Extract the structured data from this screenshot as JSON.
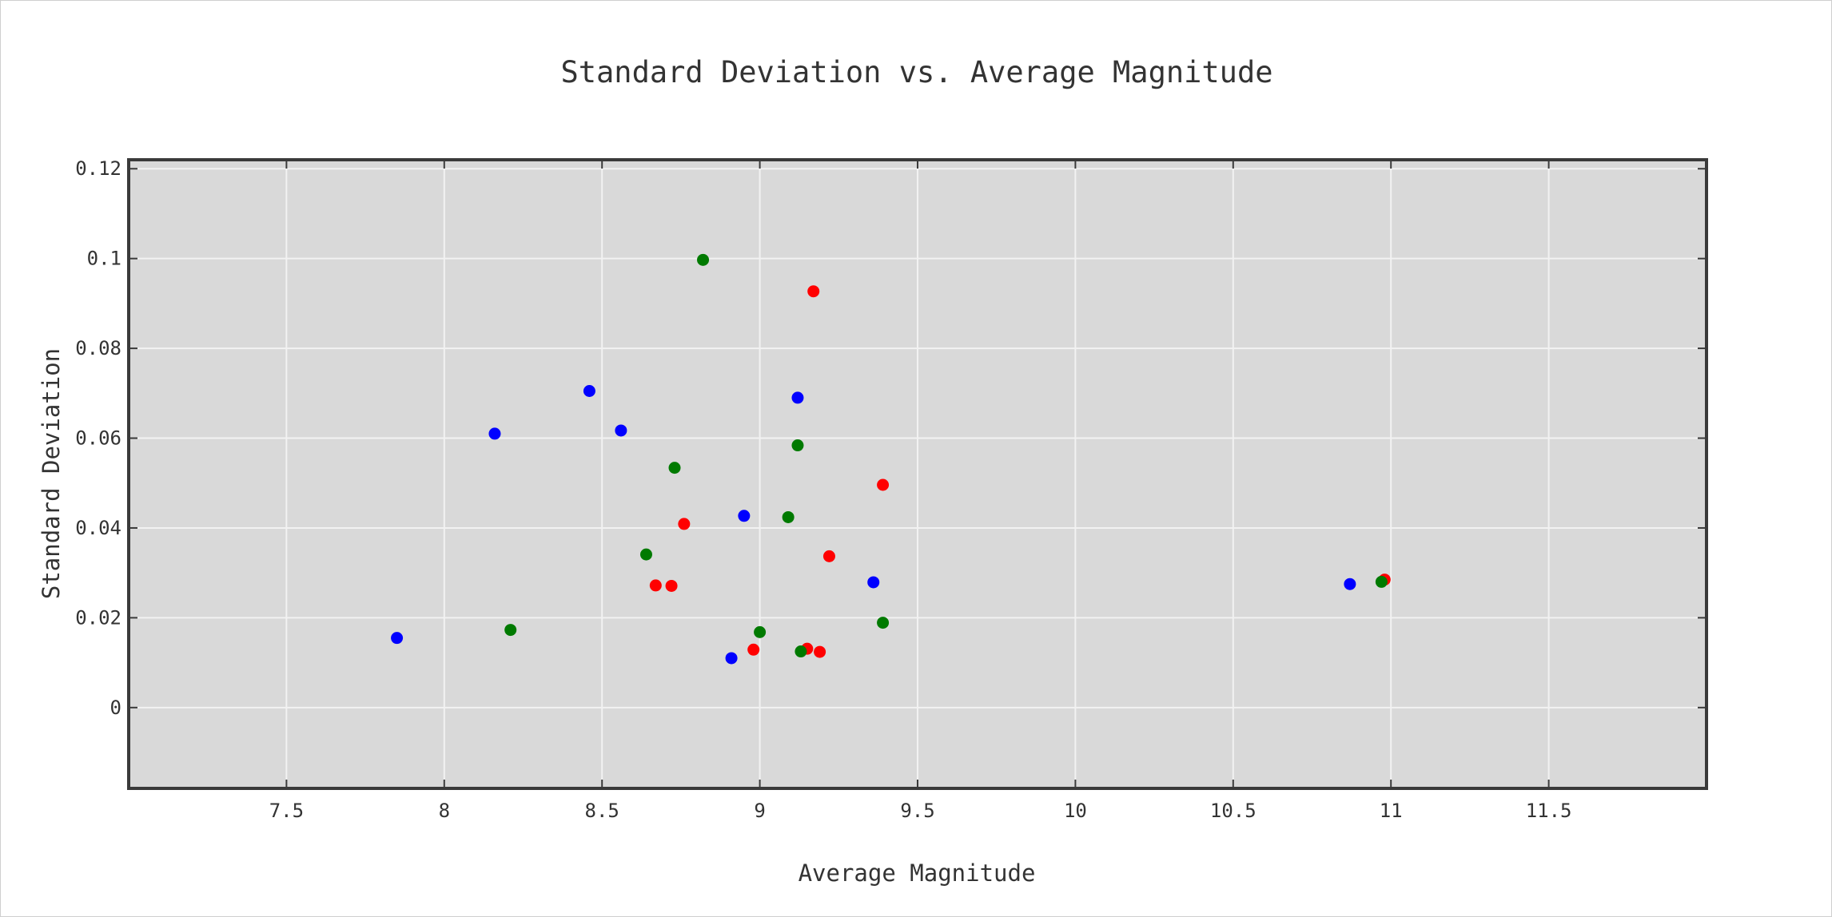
{
  "chart_data": {
    "type": "scatter",
    "title": "Standard Deviation vs. Average Magnitude",
    "xlabel": "Average Magnitude",
    "ylabel": "Standard Deviation",
    "xlim": [
      7.0,
      12.0
    ],
    "ylim": [
      -0.018,
      0.122
    ],
    "xticks": [
      7.5,
      8,
      8.5,
      9,
      9.5,
      10,
      10.5,
      11,
      11.5
    ],
    "xtick_labels": [
      "7.5",
      "8",
      "8.5",
      "9",
      "9.5",
      "10",
      "10.5",
      "11",
      "11.5"
    ],
    "yticks": [
      0,
      0.02,
      0.04,
      0.06,
      0.08,
      0.1,
      0.12
    ],
    "ytick_labels": [
      "0",
      "0.02",
      "0.04",
      "0.06",
      "0.08",
      "0.1",
      "0.12"
    ],
    "grid": true,
    "background_color": "#d9d9d9",
    "series": [
      {
        "color": "#0000ff",
        "points": [
          [
            7.85,
            0.0155
          ],
          [
            8.16,
            0.061
          ],
          [
            8.46,
            0.0705
          ],
          [
            8.56,
            0.0617
          ],
          [
            8.91,
            0.011
          ],
          [
            8.95,
            0.0427
          ],
          [
            9.12,
            0.069
          ],
          [
            9.36,
            0.0279
          ],
          [
            10.87,
            0.0275
          ]
        ]
      },
      {
        "color": "#ff0000",
        "points": [
          [
            8.67,
            0.0272
          ],
          [
            8.72,
            0.0271
          ],
          [
            8.76,
            0.0409
          ],
          [
            8.98,
            0.0129
          ],
          [
            9.15,
            0.0131
          ],
          [
            9.17,
            0.0927
          ],
          [
            9.19,
            0.0124
          ],
          [
            9.22,
            0.0337
          ],
          [
            9.39,
            0.0496
          ],
          [
            10.98,
            0.0285
          ]
        ]
      },
      {
        "color": "#007a00",
        "points": [
          [
            8.21,
            0.0173
          ],
          [
            8.64,
            0.0341
          ],
          [
            8.73,
            0.0534
          ],
          [
            8.82,
            0.0997
          ],
          [
            9.0,
            0.0168
          ],
          [
            9.09,
            0.0424
          ],
          [
            9.12,
            0.0584
          ],
          [
            9.13,
            0.0125
          ],
          [
            9.39,
            0.0189
          ],
          [
            10.97,
            0.028
          ]
        ]
      }
    ]
  }
}
